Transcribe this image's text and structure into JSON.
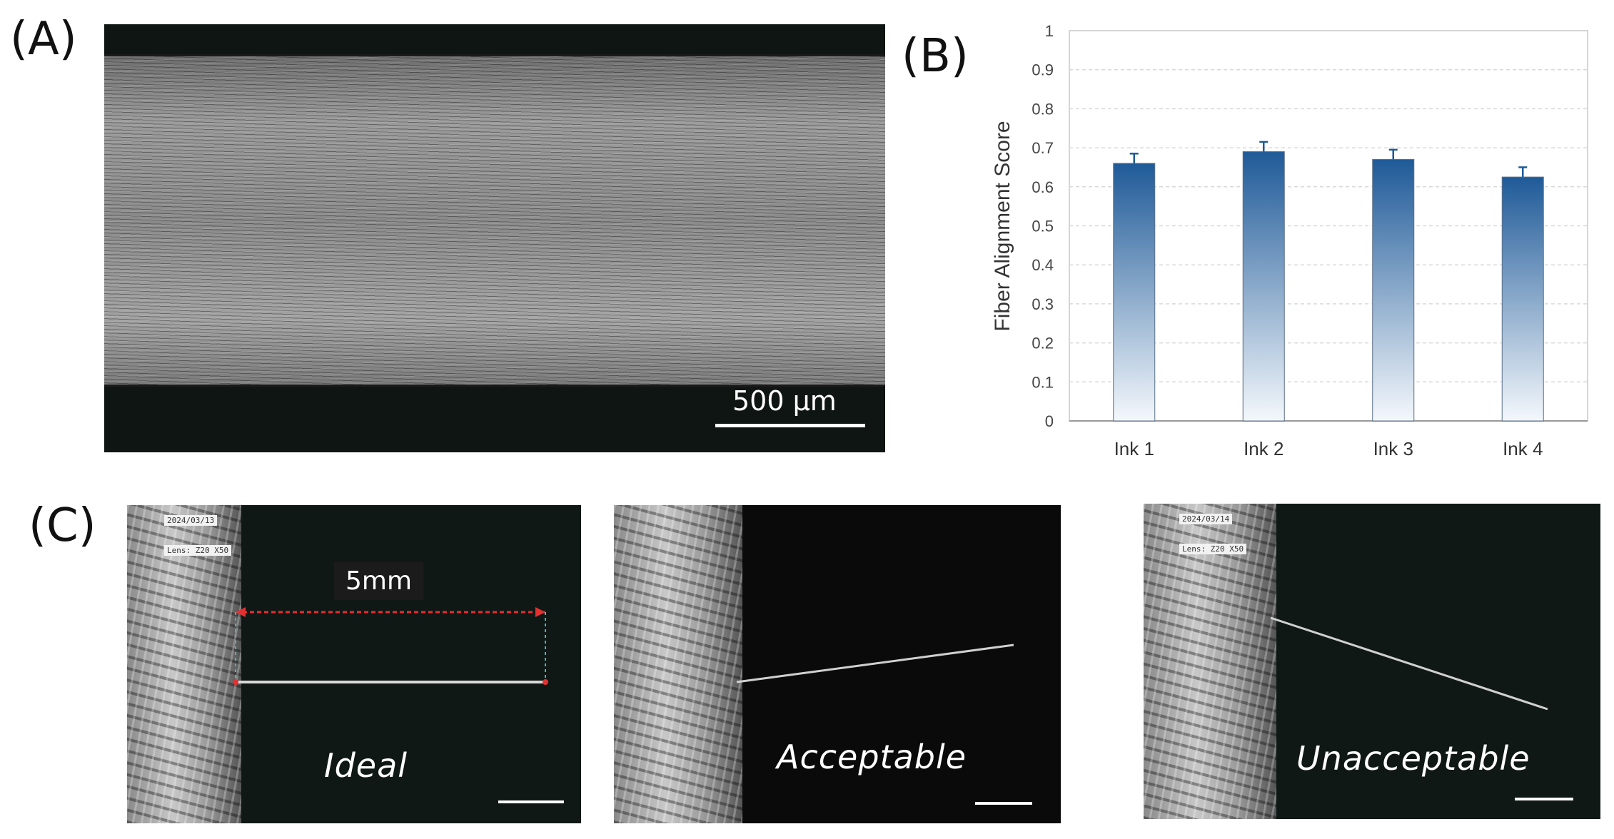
{
  "panel_labels": {
    "a": "(A)",
    "b": "(B)",
    "c": "(C)"
  },
  "panel_a": {
    "scale_label": "500 µm"
  },
  "chart_data": {
    "type": "bar",
    "title": "",
    "xlabel": "",
    "ylabel": "Fiber Alignment Score",
    "categories": [
      "Ink 1",
      "Ink 2",
      "Ink 3",
      "Ink 4"
    ],
    "values": [
      0.66,
      0.69,
      0.67,
      0.625
    ],
    "error": [
      0.025,
      0.025,
      0.025,
      0.025
    ],
    "ylim": [
      0,
      1
    ],
    "yticks": [
      "0",
      "0.1",
      "0.2",
      "0.3",
      "0.4",
      "0.5",
      "0.6",
      "0.7",
      "0.8",
      "0.9",
      "1"
    ],
    "grid": true,
    "bar_color_top": "#1f5a98",
    "bar_color_bottom": "#f4f8fc"
  },
  "panel_c": {
    "dimension_label": "5mm",
    "frames": [
      {
        "label": "Ideal",
        "date": "2024/03/13",
        "lens": "Lens: Z20 X50"
      },
      {
        "label": "Acceptable"
      },
      {
        "label": "Unacceptable",
        "date": "2024/03/14",
        "lens": "Lens: Z20 X50"
      }
    ]
  }
}
